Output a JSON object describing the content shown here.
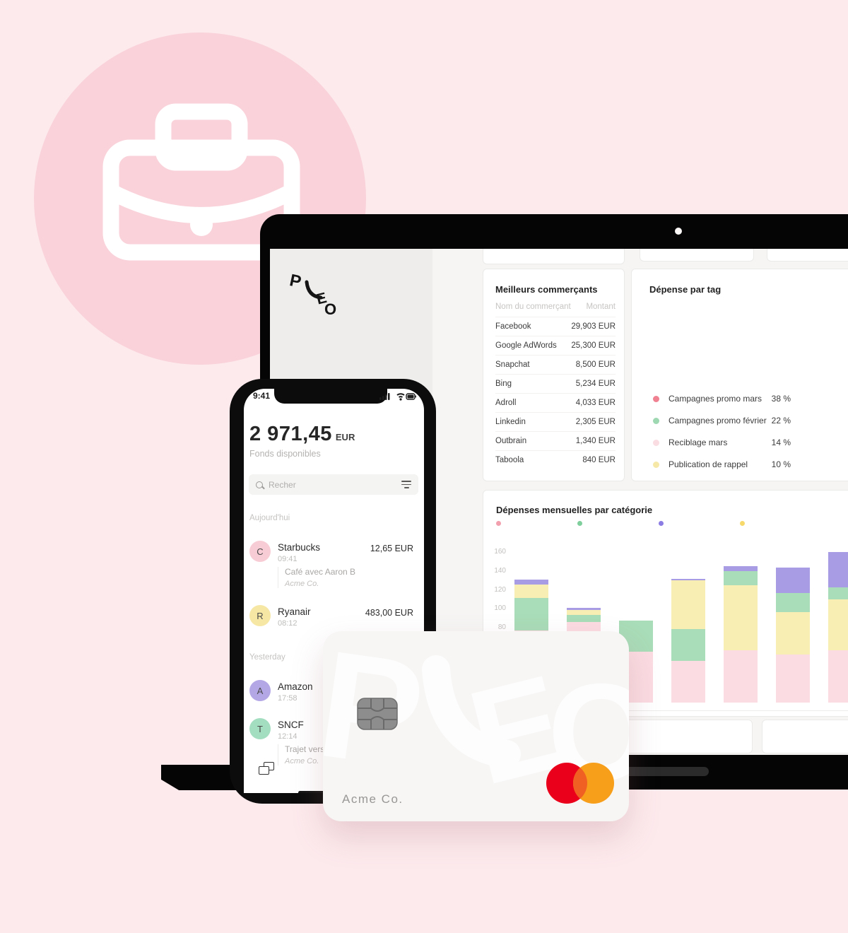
{
  "brand": {
    "logo_text": "PLEO",
    "accent_pink": "#f9d2da",
    "background": "#fdeaed"
  },
  "hero": {
    "icon": "briefcase-icon"
  },
  "laptop": {
    "dashboard": {
      "merchants_card": {
        "title": "Meilleurs commerçants",
        "columns": {
          "name": "Nom du commerçant",
          "amount": "Montant"
        },
        "rows": [
          {
            "name": "Facebook",
            "amount": "29,903 EUR"
          },
          {
            "name": "Google AdWords",
            "amount": "25,300 EUR"
          },
          {
            "name": "Snapchat",
            "amount": "8,500 EUR"
          },
          {
            "name": "Bing",
            "amount": "5,234 EUR"
          },
          {
            "name": "Adroll",
            "amount": "4,033 EUR"
          },
          {
            "name": "Linkedin",
            "amount": "2,305 EUR"
          },
          {
            "name": "Outbrain",
            "amount": "1,340 EUR"
          },
          {
            "name": "Taboola",
            "amount": "840 EUR"
          }
        ]
      },
      "tags_card": {
        "title": "Dépense par tag",
        "legend": [
          {
            "label": "Campagnes promo mars",
            "value": "38 %",
            "color": "#ef8191"
          },
          {
            "label": "Campagnes promo février",
            "value": "22 %",
            "color": "#9ed8b2"
          },
          {
            "label": "Reciblage mars",
            "value": "14 %",
            "color": "#fadde2"
          },
          {
            "label": "Publication de rappel",
            "value": "10 %",
            "color": "#f6e8a6"
          }
        ]
      },
      "monthly_card": {
        "title": "Dépenses mensuelles par catégorie"
      }
    }
  },
  "chart_data": [
    {
      "type": "bar",
      "stacked": true,
      "title": "Dépenses mensuelles par catégorie",
      "ylim": [
        0,
        160
      ],
      "y_ticks": [
        160,
        140,
        120,
        100,
        80
      ],
      "grid": false,
      "legend_position": "top",
      "legend_dot_colors": [
        "#f29fae",
        "#7fcf9c",
        "#8b7ce4",
        "#f7d96b"
      ],
      "palette": {
        "pink": "#fbdce2",
        "green": "#a9dcb8",
        "yellow": "#f8eeb4",
        "purple": "#a89ce4"
      },
      "categories": [
        "",
        "",
        "",
        "",
        "",
        "",
        ""
      ],
      "bars": [
        {
          "segments": [
            [
              "pink",
              76
            ],
            [
              "green",
              35
            ],
            [
              "yellow",
              14
            ],
            [
              "purple",
              5
            ]
          ]
        },
        {
          "segments": [
            [
              "pink",
              85
            ],
            [
              "green",
              8
            ],
            [
              "yellow",
              5
            ],
            [
              "purple",
              2
            ]
          ]
        },
        {
          "segments": [
            [
              "pink",
              54
            ],
            [
              "green",
              33
            ]
          ]
        },
        {
          "segments": [
            [
              "pink",
              44
            ],
            [
              "green",
              34
            ],
            [
              "yellow",
              51
            ],
            [
              "purple",
              2
            ]
          ]
        },
        {
          "segments": [
            [
              "pink",
              55
            ],
            [
              "yellow",
              69
            ],
            [
              "green",
              15
            ],
            [
              "purple",
              5
            ]
          ]
        },
        {
          "segments": [
            [
              "pink",
              51
            ],
            [
              "yellow",
              45
            ],
            [
              "green",
              20
            ],
            [
              "purple",
              27
            ]
          ]
        },
        {
          "segments": [
            [
              "pink",
              55
            ],
            [
              "yellow",
              54
            ],
            [
              "green",
              13
            ],
            [
              "purple",
              37
            ]
          ]
        }
      ]
    },
    {
      "type": "pie",
      "donut": true,
      "title": "Dépense par tag",
      "labels": [
        "Campagnes promo mars",
        "Campagnes promo février",
        "Reciblage mars",
        "Publication de rappel"
      ],
      "values": [
        38,
        22,
        14,
        10
      ],
      "colors": [
        "#ef8191",
        "#9ed8b2",
        "#fadde2",
        "#f6e8a6"
      ],
      "legend_position": "left"
    }
  ],
  "phone": {
    "status": {
      "time": "9:41"
    },
    "balance": {
      "amount": "2 971,45",
      "currency": "EUR",
      "subtitle": "Fonds disponibles"
    },
    "search": {
      "placeholder": "Recher"
    },
    "feed": [
      {
        "type": "header",
        "label": "Aujourd'hui"
      },
      {
        "type": "tx",
        "letter": "C",
        "avatar_color": "#f8ccd4",
        "name": "Starbucks",
        "time": "09:41",
        "amount": "12,65 EUR",
        "note": "Café avec Aaron B",
        "note_sub": "Acme Co."
      },
      {
        "type": "tx",
        "letter": "R",
        "avatar_color": "#f6e7a5",
        "name": "Ryanair",
        "time": "08:12",
        "amount": "483,00 EUR"
      },
      {
        "type": "header",
        "label": "Yesterday"
      },
      {
        "type": "tx",
        "letter": "A",
        "avatar_color": "#b3a7e6",
        "name": "Amazon",
        "time": "17:58"
      },
      {
        "type": "tx",
        "letter": "T",
        "avatar_color": "#a3dec0",
        "name": "SNCF",
        "time": "12:14",
        "note": "Trajet vers",
        "note_sub": "Acme Co."
      }
    ]
  },
  "pleo_card": {
    "watermark": "PLEO",
    "company": "Acme Co.",
    "network": "mastercard",
    "mc_red": "#eb001b",
    "mc_orange": "#f79e1b",
    "mc_overlap": "#f06022"
  }
}
